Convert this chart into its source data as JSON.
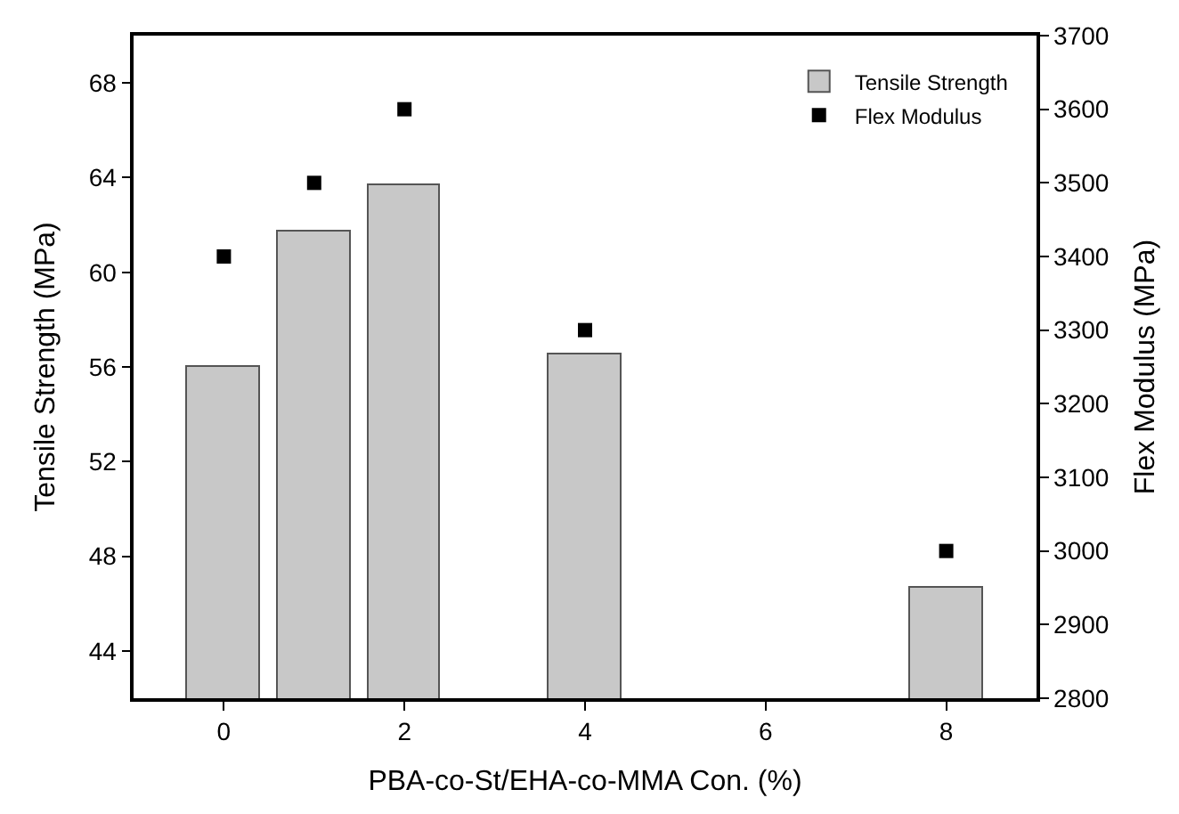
{
  "chart_data": {
    "type": "bar",
    "xlabel": "PBA-co-St/EHA-co-MMA Con. (%)",
    "ylabel": "Tensile Strength (MPa)",
    "y2label": "Flex Modulus (MPa)",
    "x": [
      0,
      1,
      2,
      4,
      8
    ],
    "series": [
      {
        "name": "Tensile Strength",
        "type": "bar",
        "color": "#c8c8c8",
        "values": [
          56,
          61.7,
          63.7,
          56.5,
          46.7
        ]
      },
      {
        "name": "Flex Modulus",
        "type": "scatter",
        "axis": "y2",
        "marker": "square",
        "color": "#000000",
        "values": [
          3400,
          3500,
          3600,
          3300,
          3000
        ]
      }
    ],
    "xlim": [
      -1,
      9
    ],
    "xticks": [
      0,
      2,
      4,
      6,
      8
    ],
    "ylim": [
      42,
      70
    ],
    "yticks": [
      44,
      48,
      52,
      56,
      60,
      64,
      68
    ],
    "y2lim": [
      2800,
      3700
    ],
    "y2ticks": [
      2800,
      2900,
      3000,
      3100,
      3200,
      3300,
      3400,
      3500,
      3600,
      3700
    ],
    "legend": "top right"
  }
}
